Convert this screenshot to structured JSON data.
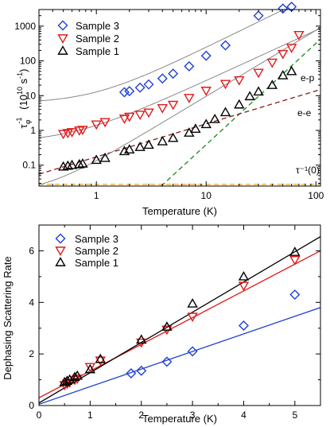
{
  "shared_ylabel": "Dephasing Scattering Rate",
  "chart_data": [
    {
      "type": "scatter",
      "xlabel": "Temperature (K)",
      "ylabel_units": "(10",
      "ylabel_exp": "10",
      "ylabel_tail": " s",
      "ylabel_tail_exp": "-1",
      "ylabel_close": ")",
      "ylabel_symbol": "τ",
      "ylabel_symbol_sub": "φ",
      "ylabel_symbol_sup": "-1",
      "xscale": "log",
      "yscale": "log",
      "xlim": [
        0.3,
        110
      ],
      "ylim": [
        0.025,
        3000
      ],
      "xticks": [
        1,
        10,
        100
      ],
      "xtick_labels": [
        "1",
        "10",
        "100"
      ],
      "yticks": [
        0.1,
        1,
        10,
        100,
        1000
      ],
      "ytick_labels": [
        "0.1",
        "1",
        "10",
        "100",
        "1000"
      ],
      "legend_position": "top-left",
      "series": [
        {
          "name": "Sample 3",
          "marker": "diamond",
          "color": "#1f3fd6",
          "x": [
            1.8,
            2.0,
            2.5,
            3.0,
            4.0,
            5.0,
            7.0,
            10.0,
            15.0,
            30.0,
            50.0,
            60.0
          ],
          "y": [
            12.5,
            13.5,
            17,
            21,
            31,
            43,
            70,
            140,
            280,
            2000,
            3200,
            3600
          ],
          "fit": {
            "a": 6,
            "b": 6.8,
            "p": 1.55
          }
        },
        {
          "name": "Sample 2",
          "marker": "triangle-down",
          "color": "#e01a1a",
          "x": [
            0.5,
            0.55,
            0.6,
            0.7,
            0.75,
            1.0,
            1.2,
            1.8,
            2.0,
            2.5,
            3.0,
            4.0,
            5.0,
            7.0,
            10.0,
            15.0,
            20.0,
            30.0,
            40.0,
            50.0,
            60.0,
            70.0
          ],
          "y": [
            0.8,
            0.85,
            0.9,
            1.0,
            1.05,
            1.5,
            1.75,
            2.2,
            2.5,
            2.85,
            3.3,
            4.4,
            5.5,
            8.7,
            14,
            22,
            28,
            46,
            90,
            160,
            240,
            560
          ],
          "fit": {
            "a": 0.45,
            "b": 0.95,
            "p": 1.45
          }
        },
        {
          "name": "Sample 1",
          "marker": "triangle-up",
          "color": "#000000",
          "x": [
            0.5,
            0.55,
            0.6,
            0.7,
            0.75,
            1.0,
            1.2,
            1.8,
            2.0,
            2.5,
            3.0,
            4.0,
            5.0,
            7.0,
            8.0,
            10.0,
            12.0,
            15.0,
            20.0,
            25.0,
            30.0,
            40.0,
            50.0,
            60.0
          ],
          "y": [
            0.09,
            0.095,
            0.1,
            0.105,
            0.11,
            0.14,
            0.16,
            0.25,
            0.28,
            0.33,
            0.38,
            0.48,
            0.6,
            0.85,
            1.1,
            1.5,
            2.1,
            3.3,
            5.5,
            9.5,
            13,
            20,
            38,
            50
          ],
          "fit": {
            "a": 0.015,
            "b": 0.12,
            "p": 1.9
          }
        }
      ],
      "reference_lines": [
        {
          "label": "e-p",
          "color": "#1c8a1c",
          "points": [
            [
              3.9,
              0.025
            ],
            [
              110,
              420
            ]
          ]
        },
        {
          "label": "e-e",
          "color": "#8b1a1a",
          "points": [
            [
              0.3,
              0.055
            ],
            [
              110,
              15
            ]
          ]
        },
        {
          "label": "τ⁻¹(0)",
          "color": "#f0a020",
          "points": [
            [
              0.3,
              0.028
            ],
            [
              110,
              0.028
            ]
          ]
        }
      ]
    },
    {
      "type": "scatter",
      "xlabel": "Temperature (K)",
      "ylabel": "",
      "xlim": [
        0,
        5.5
      ],
      "ylim": [
        0,
        7
      ],
      "xticks": [
        0,
        1,
        2,
        3,
        4,
        5
      ],
      "xtick_labels": [
        "0",
        "1",
        "2",
        "3",
        "4",
        "5"
      ],
      "yticks": [
        0,
        2,
        4,
        6
      ],
      "ytick_labels": [
        "0",
        "2",
        "4",
        "6"
      ],
      "legend_position": "top-left",
      "series": [
        {
          "name": "Sample 3",
          "marker": "diamond",
          "color": "#1f3fd6",
          "x": [
            1.8,
            2.0,
            2.5,
            3.0,
            4.0,
            5.0
          ],
          "y": [
            1.25,
            1.35,
            1.7,
            2.1,
            3.1,
            4.3
          ],
          "fit": [
            [
              0,
              0.05
            ],
            [
              5.5,
              3.8
            ]
          ]
        },
        {
          "name": "Sample 2",
          "marker": "triangle-down",
          "color": "#e01a1a",
          "x": [
            0.5,
            0.55,
            0.6,
            0.7,
            0.75,
            1.0,
            1.2,
            2.0,
            2.5,
            3.0,
            4.0,
            5.0
          ],
          "y": [
            0.8,
            0.85,
            0.9,
            1.0,
            1.05,
            1.5,
            1.75,
            2.45,
            2.95,
            3.45,
            4.65,
            5.65
          ],
          "fit": [
            [
              0,
              0.3
            ],
            [
              5.5,
              6.0
            ]
          ]
        },
        {
          "name": "Sample 1",
          "marker": "triangle-up",
          "color": "#000000",
          "x": [
            0.5,
            0.55,
            0.6,
            0.7,
            0.75,
            1.0,
            1.2,
            2.0,
            2.5,
            3.0,
            4.0,
            5.0
          ],
          "y": [
            0.9,
            0.95,
            1.0,
            1.1,
            1.15,
            1.4,
            1.8,
            2.55,
            3.05,
            3.95,
            5.0,
            5.95
          ],
          "fit": [
            [
              0,
              0.1
            ],
            [
              5.5,
              6.55
            ]
          ]
        }
      ]
    }
  ]
}
